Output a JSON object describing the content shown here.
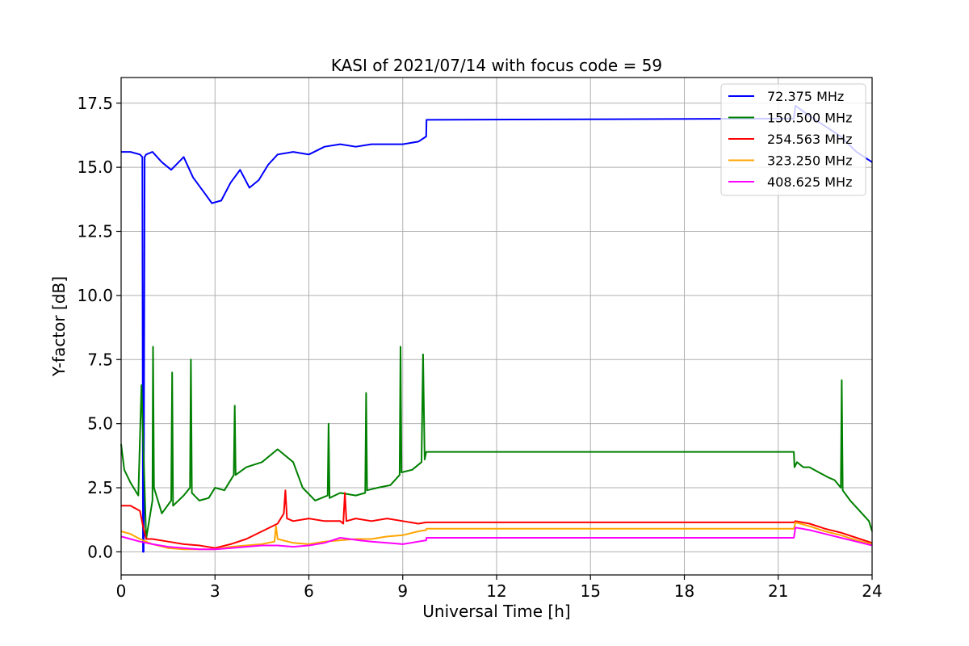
{
  "chart_data": {
    "type": "line",
    "title": "KASI of 2021/07/14 with focus code = 59",
    "xlabel": "Universal Time [h]",
    "ylabel": "Y-factor [dB]",
    "xlim": [
      0,
      24
    ],
    "ylim": [
      -0.9,
      18.5
    ],
    "xticks": [
      0,
      3,
      6,
      9,
      12,
      15,
      18,
      21,
      24
    ],
    "yticks": [
      0.0,
      2.5,
      5.0,
      7.5,
      10.0,
      12.5,
      15.0,
      17.5
    ],
    "xtick_labels": [
      "0",
      "3",
      "6",
      "9",
      "12",
      "15",
      "18",
      "21",
      "24"
    ],
    "ytick_labels": [
      "0.0",
      "2.5",
      "5.0",
      "7.5",
      "10.0",
      "12.5",
      "15.0",
      "17.5"
    ],
    "grid": true,
    "legend_position": "top-right",
    "series": [
      {
        "name": " 72.375 MHz",
        "color": "#0000ff",
        "x": [
          0,
          0.3,
          0.6,
          0.68,
          0.7,
          0.72,
          0.75,
          0.8,
          1.0,
          1.3,
          1.6,
          2.0,
          2.3,
          2.6,
          2.9,
          3.2,
          3.5,
          3.8,
          4.1,
          4.4,
          4.7,
          5.0,
          5.5,
          6.0,
          6.5,
          7.0,
          7.5,
          8.0,
          8.5,
          9.0,
          9.5,
          9.75,
          9.76,
          21.5,
          21.55,
          22.0,
          22.5,
          23.0,
          23.5,
          24.0
        ],
        "y": [
          15.6,
          15.6,
          15.5,
          15.4,
          0.0,
          0.0,
          15.4,
          15.5,
          15.6,
          15.2,
          14.9,
          15.4,
          14.6,
          14.1,
          13.6,
          13.7,
          14.4,
          14.9,
          14.2,
          14.5,
          15.1,
          15.5,
          15.6,
          15.5,
          15.8,
          15.9,
          15.8,
          15.9,
          15.9,
          15.9,
          16.0,
          16.2,
          16.85,
          16.9,
          17.4,
          17.0,
          16.6,
          16.2,
          15.6,
          15.2
        ]
      },
      {
        "name": "150.500 MHz",
        "color": "#008000",
        "x": [
          0,
          0.1,
          0.3,
          0.55,
          0.65,
          0.8,
          1.0,
          1.02,
          1.05,
          1.3,
          1.6,
          1.63,
          1.66,
          2.0,
          2.2,
          2.23,
          2.26,
          2.5,
          2.8,
          3.0,
          3.3,
          3.6,
          3.63,
          3.66,
          4.0,
          4.5,
          5.0,
          5.5,
          5.8,
          6.2,
          6.6,
          6.63,
          6.66,
          7.0,
          7.5,
          7.8,
          7.83,
          7.86,
          8.2,
          8.6,
          8.9,
          8.93,
          8.96,
          9.3,
          9.6,
          9.65,
          9.7,
          9.75,
          9.76,
          21.5,
          21.52,
          21.6,
          21.8,
          22.0,
          22.3,
          22.6,
          22.8,
          23.0,
          23.03,
          23.06,
          23.3,
          23.6,
          23.9,
          24.0
        ],
        "y": [
          4.2,
          3.2,
          2.7,
          2.2,
          6.5,
          0.5,
          2.0,
          8.0,
          2.5,
          1.5,
          2.0,
          7.0,
          1.8,
          2.2,
          2.5,
          7.5,
          2.3,
          2.0,
          2.1,
          2.5,
          2.4,
          3.0,
          5.7,
          3.0,
          3.3,
          3.5,
          4.0,
          3.5,
          2.5,
          2.0,
          2.2,
          5.0,
          2.1,
          2.3,
          2.2,
          2.3,
          6.2,
          2.4,
          2.5,
          2.6,
          3.0,
          8.0,
          3.1,
          3.2,
          3.5,
          7.7,
          3.6,
          3.9,
          3.9,
          3.9,
          3.3,
          3.5,
          3.3,
          3.3,
          3.1,
          2.9,
          2.8,
          2.5,
          6.7,
          2.4,
          2.0,
          1.6,
          1.2,
          0.8
        ]
      },
      {
        "name": "254.563 MHz",
        "color": "#ff0000",
        "x": [
          0,
          0.3,
          0.6,
          0.7,
          0.8,
          1.0,
          1.5,
          2.0,
          2.5,
          3.0,
          3.5,
          4.0,
          4.5,
          5.0,
          5.2,
          5.25,
          5.3,
          5.5,
          6.0,
          6.5,
          7.0,
          7.1,
          7.15,
          7.2,
          7.5,
          8.0,
          8.5,
          9.0,
          9.5,
          9.75,
          9.76,
          21.5,
          21.55,
          22.0,
          22.5,
          23.0,
          23.5,
          24.0
        ],
        "y": [
          1.8,
          1.8,
          1.6,
          1.0,
          0.5,
          0.5,
          0.4,
          0.3,
          0.25,
          0.15,
          0.3,
          0.5,
          0.8,
          1.1,
          1.5,
          2.4,
          1.3,
          1.2,
          1.3,
          1.2,
          1.2,
          1.1,
          2.3,
          1.2,
          1.3,
          1.2,
          1.3,
          1.2,
          1.1,
          1.15,
          1.15,
          1.15,
          1.2,
          1.1,
          0.9,
          0.75,
          0.55,
          0.35
        ]
      },
      {
        "name": "323.250 MHz",
        "color": "#ffa500",
        "x": [
          0,
          0.3,
          0.6,
          1.0,
          1.5,
          2.0,
          2.5,
          3.0,
          3.5,
          4.0,
          4.5,
          4.9,
          4.95,
          5.0,
          5.5,
          6.0,
          6.5,
          7.0,
          7.5,
          8.0,
          8.5,
          9.0,
          9.5,
          9.75,
          9.76,
          21.5,
          21.55,
          22.0,
          22.5,
          23.0,
          23.5,
          24.0
        ],
        "y": [
          0.8,
          0.7,
          0.5,
          0.3,
          0.15,
          0.1,
          0.1,
          0.1,
          0.2,
          0.25,
          0.3,
          0.4,
          1.0,
          0.5,
          0.35,
          0.3,
          0.4,
          0.45,
          0.5,
          0.5,
          0.6,
          0.65,
          0.8,
          0.85,
          0.9,
          0.9,
          1.15,
          1.0,
          0.8,
          0.65,
          0.45,
          0.3
        ]
      },
      {
        "name": "408.625 MHz",
        "color": "#ff00ff",
        "x": [
          0,
          0.3,
          0.6,
          1.0,
          1.5,
          2.0,
          2.5,
          3.0,
          3.5,
          4.0,
          4.5,
          5.0,
          5.5,
          6.0,
          6.5,
          7.0,
          7.3,
          7.6,
          8.0,
          8.5,
          9.0,
          9.5,
          9.75,
          9.76,
          21.5,
          21.55,
          22.0,
          22.5,
          23.0,
          23.5,
          24.0
        ],
        "y": [
          0.6,
          0.5,
          0.4,
          0.3,
          0.2,
          0.15,
          0.1,
          0.1,
          0.15,
          0.2,
          0.25,
          0.25,
          0.2,
          0.25,
          0.35,
          0.55,
          0.5,
          0.45,
          0.4,
          0.35,
          0.3,
          0.4,
          0.45,
          0.55,
          0.55,
          0.95,
          0.85,
          0.7,
          0.55,
          0.4,
          0.25
        ]
      }
    ]
  }
}
